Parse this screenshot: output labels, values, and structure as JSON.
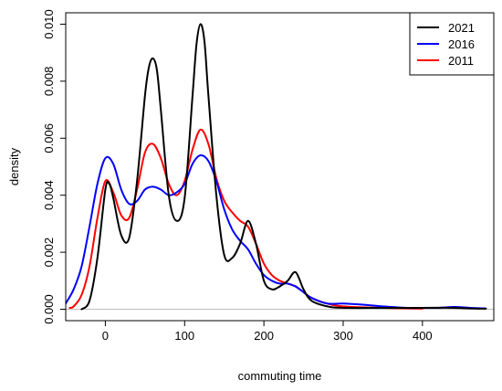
{
  "chart_data": {
    "type": "line",
    "title": "",
    "xlabel": "commuting time",
    "ylabel": "density",
    "xlim": [
      -50,
      490
    ],
    "ylim": [
      -0.0004,
      0.0104
    ],
    "xticks": [
      0,
      100,
      200,
      300,
      400
    ],
    "yticks": [
      0.0,
      0.002,
      0.004,
      0.006,
      0.008,
      0.01
    ],
    "ytick_labels": [
      "0.000",
      "0.002",
      "0.004",
      "0.006",
      "0.008",
      "0.010"
    ],
    "baseline_y": 0,
    "grid": false,
    "legend_position": "top-right",
    "series": [
      {
        "name": "2021",
        "color": "#000000",
        "x": [
          -30,
          -20,
          -10,
          0,
          5,
          10,
          20,
          30,
          40,
          50,
          55,
          60,
          65,
          70,
          80,
          90,
          100,
          110,
          115,
          120,
          125,
          130,
          140,
          150,
          160,
          170,
          180,
          190,
          200,
          210,
          220,
          230,
          240,
          250,
          260,
          280,
          300,
          350,
          400,
          440,
          460,
          480
        ],
        "y": [
          0.0,
          0.0003,
          0.0018,
          0.0042,
          0.0044,
          0.0039,
          0.0026,
          0.0025,
          0.0045,
          0.0075,
          0.0085,
          0.0088,
          0.0084,
          0.007,
          0.004,
          0.0031,
          0.0039,
          0.0075,
          0.0093,
          0.01,
          0.0094,
          0.0075,
          0.004,
          0.0019,
          0.0018,
          0.0023,
          0.0031,
          0.0023,
          0.001,
          0.0007,
          0.0008,
          0.001,
          0.0013,
          0.0007,
          0.0003,
          0.0001,
          5e-05,
          5e-05,
          5e-05,
          5e-05,
          3e-05,
          2e-05
        ]
      },
      {
        "name": "2016",
        "color": "#0000ff",
        "x": [
          -50,
          -40,
          -30,
          -20,
          -10,
          0,
          10,
          20,
          30,
          40,
          50,
          60,
          70,
          80,
          90,
          100,
          110,
          120,
          130,
          140,
          150,
          160,
          170,
          180,
          190,
          200,
          210,
          220,
          230,
          240,
          250,
          260,
          280,
          300,
          330,
          350,
          380,
          400,
          420,
          440,
          460,
          480
        ],
        "y": [
          0.0002,
          0.0007,
          0.0015,
          0.0029,
          0.0044,
          0.0053,
          0.0051,
          0.0042,
          0.0037,
          0.0038,
          0.0042,
          0.0043,
          0.0042,
          0.004,
          0.0041,
          0.0044,
          0.0051,
          0.0054,
          0.0052,
          0.0045,
          0.0035,
          0.0028,
          0.0024,
          0.0021,
          0.0016,
          0.0012,
          0.001,
          0.0009,
          0.0009,
          0.0008,
          0.0006,
          0.0004,
          0.0002,
          0.0002,
          0.00015,
          0.0001,
          5e-05,
          5e-05,
          5e-05,
          8e-05,
          5e-05,
          3e-05
        ]
      },
      {
        "name": "2011",
        "color": "#ff0000",
        "x": [
          -45,
          -40,
          -30,
          -20,
          -10,
          0,
          10,
          20,
          30,
          40,
          50,
          60,
          70,
          80,
          90,
          100,
          110,
          120,
          130,
          140,
          150,
          160,
          170,
          180,
          190,
          200,
          210,
          220,
          230,
          240,
          250,
          260,
          280,
          300,
          350,
          400
        ],
        "y": [
          5e-05,
          0.0001,
          0.0005,
          0.0015,
          0.0032,
          0.0045,
          0.0041,
          0.0033,
          0.0032,
          0.0042,
          0.0055,
          0.0058,
          0.0053,
          0.0044,
          0.004,
          0.0045,
          0.0056,
          0.0063,
          0.0058,
          0.0046,
          0.0038,
          0.0034,
          0.0031,
          0.0029,
          0.0023,
          0.0016,
          0.0012,
          0.001,
          0.0009,
          0.0008,
          0.0006,
          0.0004,
          0.0002,
          0.0001,
          5e-05,
          2e-05
        ]
      }
    ]
  }
}
